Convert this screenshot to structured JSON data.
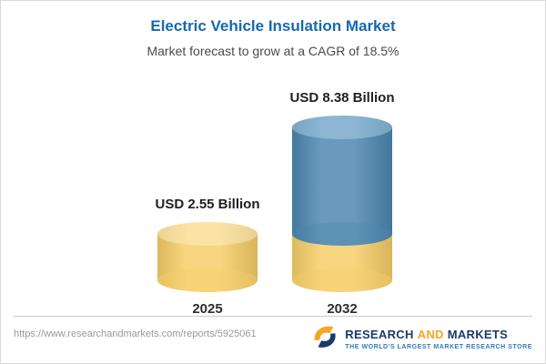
{
  "header": {
    "title": "Electric Vehicle Insulation Market",
    "subtitle": "Market forecast to grow at a CAGR of 18.5%"
  },
  "chart_data": {
    "type": "bar",
    "subtype": "3d-cylinder-stacked",
    "title": "Electric Vehicle Insulation Market",
    "subtitle": "Market forecast to grow at a CAGR of 18.5%",
    "unit": "USD Billion",
    "cagr_percent": 18.5,
    "categories": [
      "2025",
      "2032"
    ],
    "values": [
      2.55,
      8.38
    ],
    "value_labels": [
      "USD 2.55 Billion",
      "USD 8.38 Billion"
    ],
    "ylim": [
      0,
      9
    ],
    "grid": false,
    "legend": "none",
    "bars": [
      {
        "category": "2025",
        "total": 2.55,
        "segments": [
          {
            "value": 2.55,
            "color_key": "gold"
          }
        ]
      },
      {
        "category": "2032",
        "total": 8.38,
        "segments": [
          {
            "value": 2.55,
            "color_key": "gold"
          },
          {
            "value": 5.83,
            "color_key": "blue"
          }
        ]
      }
    ],
    "colors": {
      "gold": {
        "body": "#F6CE67",
        "cap": "#F9E09B"
      },
      "blue": {
        "body": "#4C86AF",
        "cap": "#7FAECE"
      }
    }
  },
  "footer": {
    "url": "https://www.researchandmarkets.com/reports/5925061",
    "brand": {
      "name_part1": "RESEARCH",
      "name_part2": "AND",
      "name_part3": "MARKETS",
      "tagline": "THE WORLD'S LARGEST MARKET RESEARCH STORE"
    }
  },
  "theme": {
    "title_color": "#1669AD",
    "subtitle_color": "#4A4A4A",
    "brand_navy": "#1B3A6B",
    "brand_orange": "#F5A623",
    "tagline_blue": "#2F7AB8"
  }
}
